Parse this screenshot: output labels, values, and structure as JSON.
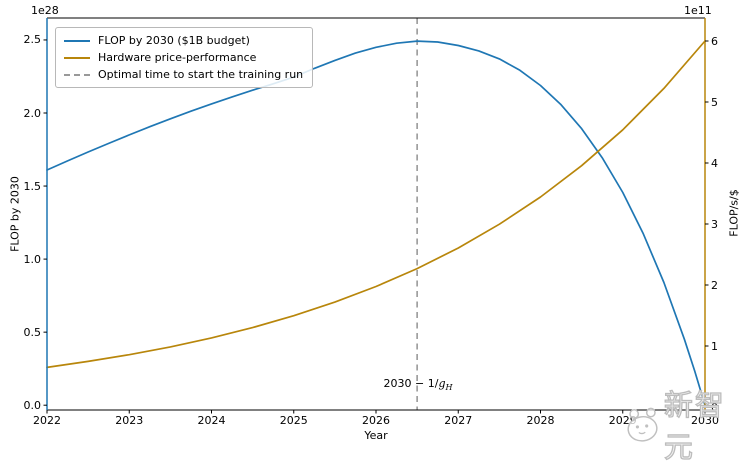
{
  "figure": {
    "background": "#ffffff",
    "watermark": {
      "text": "新智元",
      "icon": "mascot-icon",
      "color": "#bcbcbc"
    }
  },
  "chart_data": {
    "type": "line",
    "title": "",
    "xlabel": "Year",
    "left_ylabel": "FLOP by 2030",
    "right_ylabel": "FLOP/s/$",
    "left_offset_label": "1e28",
    "right_offset_label": "1e11",
    "xlim": [
      2022,
      2030
    ],
    "left_ylim": [
      0,
      2.68
    ],
    "right_ylim": [
      0,
      6.45
    ],
    "grid": false,
    "x_ticks": [
      2022,
      2023,
      2024,
      2025,
      2026,
      2027,
      2028,
      2029,
      2030
    ],
    "x_tick_labels": [
      "2022",
      "2023",
      "2024",
      "2025",
      "2026",
      "2027",
      "2028",
      "2029",
      "2030"
    ],
    "left_y_ticks": [
      0.0,
      0.5,
      1.0,
      1.5,
      2.0,
      2.5
    ],
    "left_y_tick_labels": [
      "0.0",
      "0.5",
      "1.0",
      "1.5",
      "2.0",
      "2.5"
    ],
    "right_y_ticks": [
      0,
      1,
      2,
      3,
      4,
      5,
      6
    ],
    "right_y_tick_labels": [
      "0",
      "1",
      "2",
      "3",
      "4",
      "5",
      "6"
    ],
    "colors": {
      "left_spine": "#1f77b4",
      "right_spine": "#b8860b",
      "black_spine": "#000000",
      "vline": "#999999"
    },
    "legend": {
      "position": "upper left",
      "entries": [
        {
          "label": "FLOP by 2030 ($1B budget)",
          "color": "#1f77b4",
          "dashed": false
        },
        {
          "label": "Hardware price-performance",
          "color": "#b8860b",
          "dashed": false
        },
        {
          "label": "Optimal time to start the training run",
          "color": "#999999",
          "dashed": true
        }
      ]
    },
    "vline": {
      "x": 2026.5,
      "style": "dashed",
      "color": "#999999",
      "label_prefix": "2030 − 1/",
      "label_var": "g",
      "label_sub": "H"
    },
    "series": [
      {
        "name": "FLOP by 2030 ($1B budget)",
        "axis": "left",
        "units": "1e28 FLOP",
        "color": "#1f77b4",
        "x": [
          2022,
          2022.25,
          2022.5,
          2022.75,
          2023,
          2023.25,
          2023.5,
          2023.75,
          2024,
          2024.25,
          2024.5,
          2024.75,
          2025,
          2025.25,
          2025.5,
          2025.75,
          2026,
          2026.25,
          2026.5,
          2026.75,
          2027,
          2027.25,
          2027.5,
          2027.75,
          2028,
          2028.25,
          2028.5,
          2028.75,
          2029,
          2029.25,
          2029.5,
          2029.75,
          2029.875,
          2030
        ],
        "y": [
          1.61,
          1.672,
          1.733,
          1.792,
          1.85,
          1.906,
          1.96,
          2.012,
          2.062,
          2.11,
          2.156,
          2.2,
          2.246,
          2.305,
          2.36,
          2.41,
          2.45,
          2.478,
          2.492,
          2.486,
          2.462,
          2.425,
          2.37,
          2.292,
          2.188,
          2.056,
          1.893,
          1.694,
          1.456,
          1.173,
          0.84,
          0.451,
          0.234,
          0.0
        ]
      },
      {
        "name": "Hardware price-performance",
        "axis": "right",
        "units": "1e11 FLOP/s/$",
        "color": "#b8860b",
        "x": [
          2022,
          2022.5,
          2023,
          2023.5,
          2024,
          2024.5,
          2025,
          2025.5,
          2026,
          2026.5,
          2027,
          2027.5,
          2028,
          2028.5,
          2029,
          2029.5,
          2030
        ],
        "y": [
          0.65,
          0.747,
          0.858,
          0.986,
          1.133,
          1.302,
          1.496,
          1.719,
          1.975,
          2.269,
          2.607,
          2.996,
          3.443,
          3.956,
          4.545,
          5.223,
          6.0
        ]
      }
    ]
  }
}
